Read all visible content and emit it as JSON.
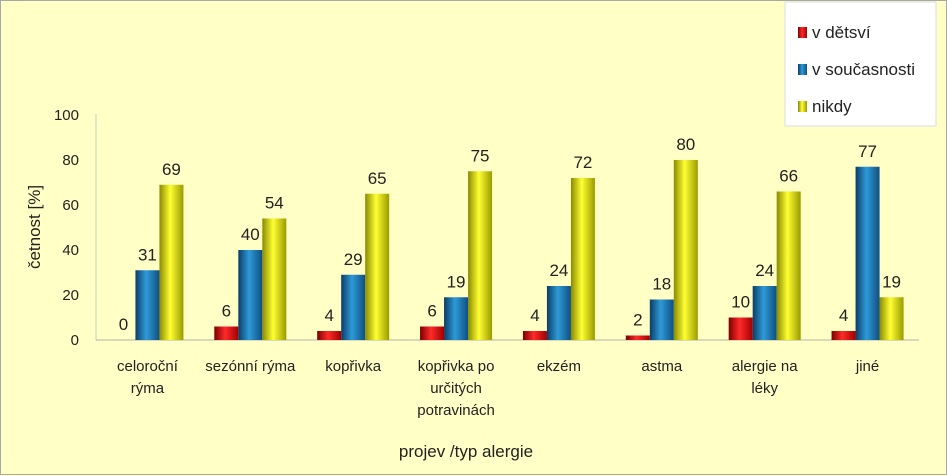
{
  "chart_data": {
    "type": "bar",
    "title": "",
    "xlabel": "projev /typ alergie",
    "ylabel": "četnost [%]",
    "ylim": [
      0,
      100
    ],
    "yticks": [
      0,
      20,
      40,
      60,
      80,
      100
    ],
    "grid": false,
    "legend_position": "top-right",
    "categories": [
      [
        "celoroční",
        "rýma"
      ],
      [
        "sezónní rýma"
      ],
      [
        "kopřivka"
      ],
      [
        "kopřivka po",
        "určitých",
        "potravinách"
      ],
      [
        "ekzém"
      ],
      [
        "astma"
      ],
      [
        "alergie na",
        "léky"
      ],
      [
        "jiné"
      ]
    ],
    "series": [
      {
        "name": "v dětsví",
        "color": "#e8141c",
        "values": [
          0,
          6,
          4,
          6,
          4,
          2,
          10,
          4
        ]
      },
      {
        "name": "v současnosti",
        "color": "#1f7fbf",
        "values": [
          31,
          40,
          29,
          19,
          24,
          18,
          24,
          77
        ]
      },
      {
        "name": "nikdy",
        "color": "#f3f314",
        "values": [
          69,
          54,
          65,
          75,
          72,
          80,
          66,
          19
        ]
      }
    ]
  }
}
